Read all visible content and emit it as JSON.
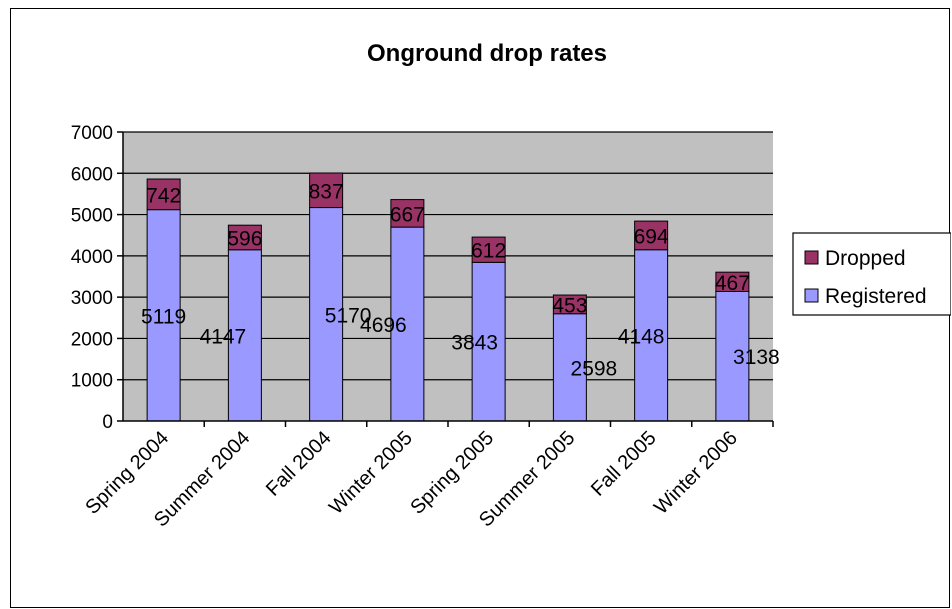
{
  "chart_data": {
    "type": "bar",
    "stacked": true,
    "title": "Onground drop rates",
    "categories": [
      "Spring 2004",
      "Summer 2004",
      "Fall 2004",
      "Winter 2005",
      "Spring 2005",
      "Summer 2005",
      "Fall 2005",
      "Winter 2006"
    ],
    "series": [
      {
        "name": "Registered",
        "color": "#9999ff",
        "values": [
          5119,
          4147,
          5170,
          4696,
          3843,
          2598,
          4148,
          3138
        ]
      },
      {
        "name": "Dropped",
        "color": "#993366",
        "values": [
          742,
          596,
          837,
          667,
          612,
          453,
          694,
          467
        ]
      }
    ],
    "ylim": [
      0,
      7000
    ],
    "yticks": [
      0,
      1000,
      2000,
      3000,
      4000,
      5000,
      6000,
      7000
    ],
    "grid": true,
    "plot_background": "#c0c0c0",
    "legend": "right"
  }
}
